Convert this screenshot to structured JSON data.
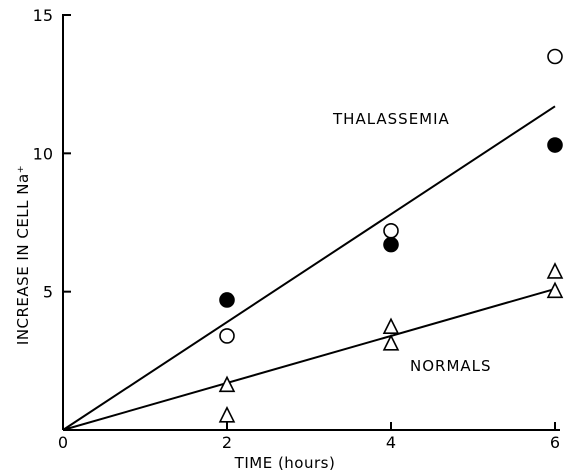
{
  "chart_data": {
    "type": "scatter",
    "xlabel": "TIME (hours)",
    "ylabel": "INCREASE IN CELL Na⁺",
    "xlim": [
      0,
      6
    ],
    "ylim": [
      0,
      15
    ],
    "x_ticks": [
      0,
      2,
      4,
      6
    ],
    "y_ticks": [
      5,
      10,
      15
    ],
    "x_tick_labels": [
      "0",
      "2",
      "4",
      "6"
    ],
    "y_tick_labels": [
      "5",
      "10",
      "15"
    ],
    "grid": false,
    "series": [
      {
        "marker": "open-circle",
        "x": [
          2,
          4,
          6
        ],
        "y": [
          3.4,
          7.2,
          13.5
        ]
      },
      {
        "marker": "filled-circle",
        "x": [
          2,
          4,
          6
        ],
        "y": [
          4.7,
          6.7,
          10.3
        ]
      },
      {
        "marker": "open-triangle",
        "x": [
          2,
          2,
          4,
          4,
          6,
          6
        ],
        "y": [
          0.5,
          1.6,
          3.1,
          3.7,
          5.0,
          5.7
        ]
      }
    ],
    "fit_lines": [
      {
        "label": "THALASSEMIA",
        "x": [
          0,
          6
        ],
        "y": [
          0,
          11.7
        ]
      },
      {
        "label": "NORMALS",
        "x": [
          0,
          6
        ],
        "y": [
          0,
          5.1
        ]
      }
    ]
  }
}
